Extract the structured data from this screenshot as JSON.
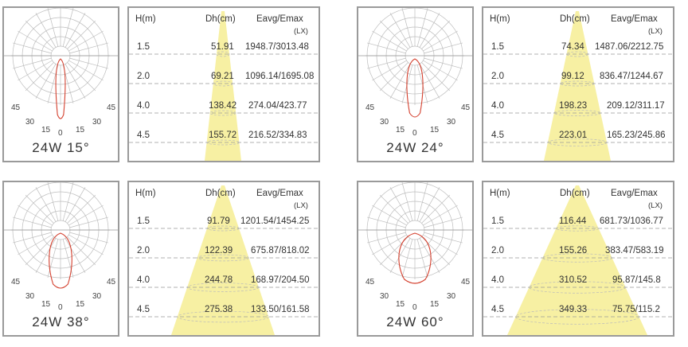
{
  "panels": [
    {
      "id": "15",
      "label": "24W 15°",
      "headers": {
        "h": "H(m)",
        "dh": "Dh(cm)",
        "eavg": "Eavg/Emax",
        "unit": "(LX)"
      },
      "rows": [
        {
          "h": "1.5",
          "dh": "51.91",
          "e": "1948.7/3013.48"
        },
        {
          "h": "2.0",
          "dh": "69.21",
          "e": "1096.14/1695.08"
        },
        {
          "h": "4.0",
          "dh": "138.42",
          "e": "274.04/423.77"
        },
        {
          "h": "4.5",
          "dh": "155.72",
          "e": "216.52/334.83"
        }
      ]
    },
    {
      "id": "24",
      "label": "24W 24°",
      "headers": {
        "h": "H(m)",
        "dh": "Dh(cm)",
        "eavg": "Eavg/Emax",
        "unit": "(LX)"
      },
      "rows": [
        {
          "h": "1.5",
          "dh": "74.34",
          "e": "1487.06/2212.75"
        },
        {
          "h": "2.0",
          "dh": "99.12",
          "e": "836.47/1244.67"
        },
        {
          "h": "4.0",
          "dh": "198.23",
          "e": "209.12/311.17"
        },
        {
          "h": "4.5",
          "dh": "223.01",
          "e": "165.23/245.86"
        }
      ]
    },
    {
      "id": "38",
      "label": "24W 38°",
      "headers": {
        "h": "H(m)",
        "dh": "Dh(cm)",
        "eavg": "Eavg/Emax",
        "unit": "(LX)"
      },
      "rows": [
        {
          "h": "1.5",
          "dh": "91.79",
          "e": "1201.54/1454.25"
        },
        {
          "h": "2.0",
          "dh": "122.39",
          "e": "675.87/818.02"
        },
        {
          "h": "4.0",
          "dh": "244.78",
          "e": "168.97/204.50"
        },
        {
          "h": "4.5",
          "dh": "275.38",
          "e": "133.50/161.58"
        }
      ]
    },
    {
      "id": "60",
      "label": "24W 60°",
      "headers": {
        "h": "H(m)",
        "dh": "Dh(cm)",
        "eavg": "Eavg/Emax",
        "unit": "(LX)"
      },
      "rows": [
        {
          "h": "1.5",
          "dh": "116.44",
          "e": "681.73/1036.77"
        },
        {
          "h": "2.0",
          "dh": "155.26",
          "e": "383.47/583.19"
        },
        {
          "h": "4.0",
          "dh": "310.52",
          "e": "95.87/145.8"
        },
        {
          "h": "4.5",
          "dh": "349.33",
          "e": "75.75/115.2"
        }
      ]
    }
  ],
  "polar_angle_labels": [
    "45",
    "30",
    "15",
    "0",
    "15",
    "30",
    "45"
  ],
  "colors": {
    "beam": "#f7f0a3",
    "curve": "#d4402e",
    "grid": "#bdbdbd",
    "border": "#9a9a9a"
  }
}
